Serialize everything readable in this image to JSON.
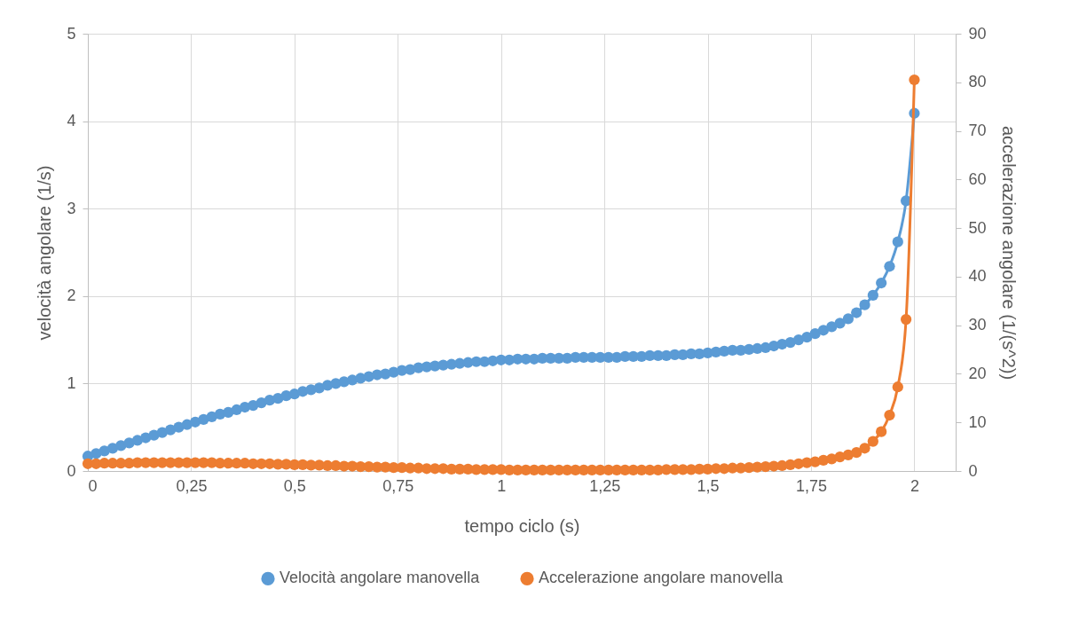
{
  "chart_data": {
    "type": "line",
    "xlabel": "tempo ciclo (s)",
    "ylabel": "velocità angolare (1/s)",
    "y2label": "accelerazione angolare (1/(s^2))",
    "x": [
      0,
      0.02,
      0.04,
      0.06,
      0.08,
      0.1,
      0.12,
      0.14,
      0.16,
      0.18,
      0.2,
      0.22,
      0.24,
      0.26,
      0.28,
      0.3,
      0.32,
      0.34,
      0.36,
      0.38,
      0.4,
      0.42,
      0.44,
      0.46,
      0.48,
      0.5,
      0.52,
      0.54,
      0.56,
      0.58,
      0.6,
      0.62,
      0.64,
      0.66,
      0.68,
      0.7,
      0.72,
      0.74,
      0.76,
      0.78,
      0.8,
      0.82,
      0.84,
      0.86,
      0.88,
      0.9,
      0.92,
      0.94,
      0.96,
      0.98,
      1,
      1.02,
      1.04,
      1.06,
      1.08,
      1.1,
      1.12,
      1.14,
      1.16,
      1.18,
      1.2,
      1.22,
      1.24,
      1.26,
      1.28,
      1.3,
      1.32,
      1.34,
      1.36,
      1.38,
      1.4,
      1.42,
      1.44,
      1.46,
      1.48,
      1.5,
      1.52,
      1.54,
      1.56,
      1.58,
      1.6,
      1.62,
      1.64,
      1.66,
      1.68,
      1.7,
      1.72,
      1.74,
      1.76,
      1.78,
      1.8,
      1.82,
      1.84,
      1.86,
      1.88,
      1.9,
      1.92,
      1.94,
      1.96,
      1.98,
      2
    ],
    "series": [
      {
        "name": "Velocità angolare manovella",
        "color": "#5b9bd5",
        "values": [
          0.17,
          0.2,
          0.23,
          0.26,
          0.29,
          0.32,
          0.35,
          0.38,
          0.41,
          0.44,
          0.47,
          0.5,
          0.53,
          0.56,
          0.59,
          0.62,
          0.65,
          0.67,
          0.7,
          0.73,
          0.75,
          0.78,
          0.81,
          0.83,
          0.86,
          0.88,
          0.91,
          0.93,
          0.95,
          0.98,
          1,
          1.02,
          1.04,
          1.06,
          1.08,
          1.1,
          1.11,
          1.13,
          1.15,
          1.16,
          1.18,
          1.19,
          1.2,
          1.21,
          1.22,
          1.23,
          1.24,
          1.25,
          1.25,
          1.26,
          1.27,
          1.27,
          1.28,
          1.28,
          1.28,
          1.29,
          1.29,
          1.29,
          1.29,
          1.3,
          1.3,
          1.3,
          1.3,
          1.3,
          1.3,
          1.31,
          1.31,
          1.31,
          1.32,
          1.32,
          1.32,
          1.33,
          1.33,
          1.34,
          1.34,
          1.35,
          1.36,
          1.37,
          1.38,
          1.38,
          1.39,
          1.4,
          1.41,
          1.43,
          1.45,
          1.47,
          1.5,
          1.53,
          1.57,
          1.61,
          1.65,
          1.69,
          1.74,
          1.81,
          1.9,
          2.01,
          2.15,
          2.34,
          2.62,
          3.09,
          4.09
        ]
      },
      {
        "name": "Accelerazione angolare manovella",
        "color": "#ed7d31",
        "axis": "y2",
        "values": [
          1.5,
          1.5,
          1.6,
          1.6,
          1.6,
          1.6,
          1.7,
          1.7,
          1.7,
          1.7,
          1.7,
          1.7,
          1.7,
          1.7,
          1.7,
          1.7,
          1.6,
          1.6,
          1.6,
          1.6,
          1.5,
          1.5,
          1.5,
          1.4,
          1.4,
          1.3,
          1.3,
          1.2,
          1.2,
          1.1,
          1.1,
          1,
          1,
          0.9,
          0.9,
          0.8,
          0.8,
          0.7,
          0.7,
          0.6,
          0.6,
          0.5,
          0.5,
          0.5,
          0.4,
          0.4,
          0.4,
          0.3,
          0.3,
          0.3,
          0.3,
          0.2,
          0.2,
          0.2,
          0.2,
          0.2,
          0.2,
          0.2,
          0.2,
          0.2,
          0.2,
          0.2,
          0.2,
          0.2,
          0.2,
          0.2,
          0.2,
          0.2,
          0.2,
          0.2,
          0.3,
          0.3,
          0.3,
          0.3,
          0.4,
          0.4,
          0.5,
          0.5,
          0.6,
          0.6,
          0.7,
          0.8,
          0.9,
          1,
          1.1,
          1.3,
          1.5,
          1.7,
          1.9,
          2.2,
          2.5,
          2.9,
          3.3,
          3.8,
          4.7,
          6.1,
          8.1,
          11.5,
          17.3,
          31.2,
          80.5
        ]
      }
    ],
    "xlim": [
      0,
      2.1
    ],
    "xticks": [
      0,
      {
        "value": 0.25,
        "label": "0,25"
      },
      {
        "value": 0.5,
        "label": "0,5"
      },
      {
        "value": 0.75,
        "label": "0,75"
      },
      1,
      {
        "value": 1.25,
        "label": "1,25"
      },
      {
        "value": 1.5,
        "label": "1,5"
      },
      {
        "value": 1.75,
        "label": "1,75"
      },
      2
    ],
    "ylim": [
      0,
      5
    ],
    "yticks": [
      0,
      1,
      2,
      3,
      4,
      5
    ],
    "y2lim": [
      0,
      90
    ],
    "y2ticks": [
      0,
      10,
      20,
      30,
      40,
      50,
      60,
      70,
      80,
      90
    ],
    "grid": true,
    "legend": "bottom",
    "marker": "circle",
    "line_style": "solid"
  }
}
